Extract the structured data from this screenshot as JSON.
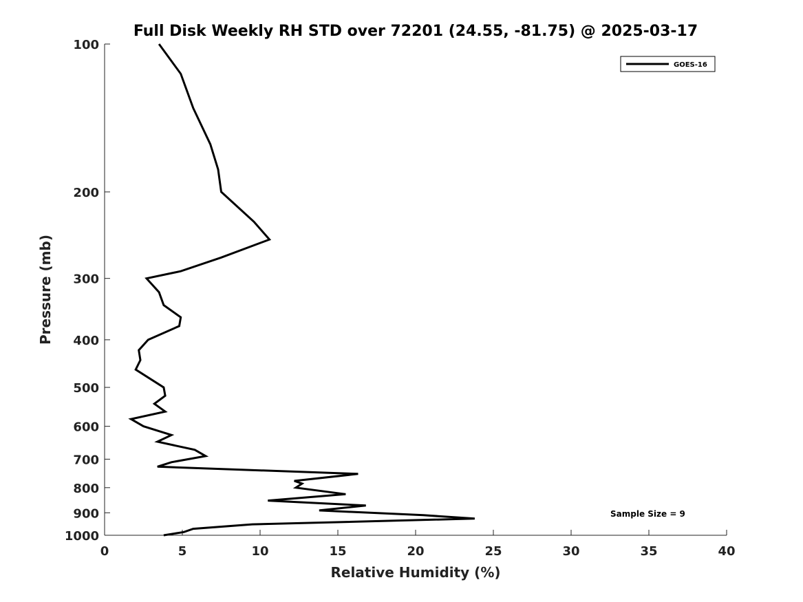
{
  "chart_data": {
    "type": "line",
    "title": "Full Disk Weekly RH STD over 72201 (24.55, -81.75) @ 2025-03-17",
    "xlabel": "Relative Humidity (%)",
    "ylabel": "Pressure (mb)",
    "xlim": [
      0,
      40
    ],
    "ylim": [
      1000,
      100
    ],
    "yscale": "log",
    "x_ticks": [
      0,
      5,
      10,
      15,
      20,
      25,
      30,
      35,
      40
    ],
    "y_ticks": [
      100,
      200,
      300,
      400,
      500,
      600,
      700,
      800,
      900,
      1000
    ],
    "grid": false,
    "legend_position": "top-right",
    "annotation": "Sample Size = 9",
    "series": [
      {
        "name": "GOES-16",
        "color": "#000000",
        "points": [
          [
            3.5,
            100
          ],
          [
            4.9,
            115
          ],
          [
            5.7,
            135
          ],
          [
            6.8,
            160
          ],
          [
            7.3,
            180
          ],
          [
            7.5,
            200
          ],
          [
            9.6,
            230
          ],
          [
            10.6,
            250
          ],
          [
            7.5,
            272
          ],
          [
            4.9,
            290
          ],
          [
            2.7,
            300
          ],
          [
            3.5,
            320
          ],
          [
            3.8,
            340
          ],
          [
            4.9,
            360
          ],
          [
            4.8,
            375
          ],
          [
            2.8,
            400
          ],
          [
            2.2,
            420
          ],
          [
            2.3,
            440
          ],
          [
            2.0,
            460
          ],
          [
            3.8,
            500
          ],
          [
            3.9,
            520
          ],
          [
            3.2,
            540
          ],
          [
            3.9,
            560
          ],
          [
            1.7,
            580
          ],
          [
            2.5,
            600
          ],
          [
            4.3,
            625
          ],
          [
            3.4,
            645
          ],
          [
            5.8,
            670
          ],
          [
            6.5,
            690
          ],
          [
            4.3,
            710
          ],
          [
            3.4,
            725
          ],
          [
            16.3,
            750
          ],
          [
            12.2,
            775
          ],
          [
            12.7,
            785
          ],
          [
            12.3,
            800
          ],
          [
            15.5,
            825
          ],
          [
            10.5,
            850
          ],
          [
            16.8,
            870
          ],
          [
            13.8,
            890
          ],
          [
            20.5,
            910
          ],
          [
            23.8,
            925
          ],
          [
            9.5,
            950
          ],
          [
            5.7,
            970
          ],
          [
            5.1,
            985
          ],
          [
            3.8,
            1000
          ]
        ]
      }
    ]
  }
}
